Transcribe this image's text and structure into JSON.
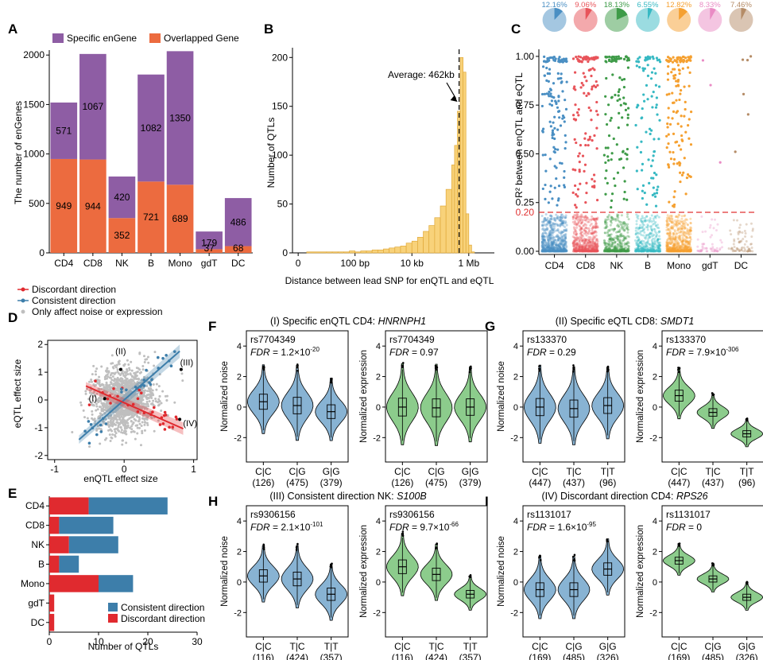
{
  "colors": {
    "purple": "#8e5da4",
    "orange": "#ec6b3f",
    "hist": "#f8d27a",
    "histEdge": "#e0a93a",
    "blue": "#3d7eaa",
    "red": "#e02a2f",
    "grey": "#bfbfbf",
    "violinBlue": "#88b3d3",
    "violinGreen": "#8ccc8c",
    "refline": "#e03030",
    "cells": [
      "#4a8fc3",
      "#e8545a",
      "#3e9b48",
      "#37b9c3",
      "#f5a030",
      "#e98bc4",
      "#b58c67"
    ]
  },
  "panels": {
    "A": "A",
    "B": "B",
    "C": "C",
    "D": "D",
    "E": "E",
    "F": "F",
    "G": "G",
    "H": "H",
    "I": "I"
  },
  "chart_data": [
    {
      "id": "A",
      "type": "bar",
      "stacked": true,
      "categories": [
        "CD4",
        "CD8",
        "NK",
        "B",
        "Mono",
        "gdT",
        "DC"
      ],
      "series": [
        {
          "name": "Overlapped Gene",
          "values": [
            949,
            944,
            352,
            721,
            689,
            37,
            68
          ]
        },
        {
          "name": "Specific enGene",
          "values": [
            571,
            1067,
            420,
            1082,
            1350,
            179,
            486
          ]
        }
      ],
      "ylabel": "The number of enGenes",
      "ylim": [
        0,
        2050
      ],
      "yticks": [
        0,
        500,
        1000,
        1500,
        2000
      ]
    },
    {
      "id": "B",
      "type": "bar",
      "title": "Average: 462kb",
      "xlabel": "Distance between lead SNP for enQTL and eQTL",
      "ylabel": "Number of QTLs",
      "xticks": [
        "0",
        "100 bp",
        "10 kb",
        "1 Mb"
      ],
      "yticks": [
        0,
        50,
        100,
        150,
        200
      ],
      "ylim": [
        0,
        210
      ],
      "bins_log10": [
        0.3,
        1.0,
        1.2,
        1.4,
        1.6,
        1.8,
        2.0,
        2.2,
        2.4,
        2.6,
        2.8,
        3.0,
        3.2,
        3.4,
        3.6,
        3.8,
        4.0,
        4.2,
        4.4,
        4.6,
        4.8,
        5.0,
        5.2,
        5.4,
        5.5,
        5.6,
        5.7,
        5.8,
        5.9,
        6.0,
        6.1
      ],
      "counts": [
        1,
        1,
        1,
        1,
        1,
        2,
        1,
        2,
        2,
        3,
        3,
        4,
        5,
        6,
        7,
        10,
        12,
        16,
        22,
        28,
        36,
        48,
        65,
        90,
        110,
        145,
        200,
        185,
        40,
        8,
        1
      ],
      "average_log10": 5.66
    },
    {
      "id": "C",
      "type": "scatter",
      "ylabel": "R² between enQTL and eQTL",
      "categories": [
        "CD4",
        "CD8",
        "NK",
        "B",
        "Mono",
        "gdT",
        "DC"
      ],
      "pie_percent": [
        "12.16%",
        "9.06%",
        "18.13%",
        "6.55%",
        "12.82%",
        "8.33%",
        "7.46%"
      ],
      "pie_values": [
        12.16,
        9.06,
        18.13,
        6.55,
        12.82,
        8.33,
        7.46
      ],
      "yticks": [
        "0.00",
        "0.25",
        "0.50",
        "0.75",
        "1.00"
      ],
      "ylim": [
        0,
        1.02
      ],
      "threshold": 0.2,
      "threshold_label": "0.20",
      "high_counts": [
        140,
        120,
        100,
        90,
        140,
        3,
        6
      ],
      "low_counts": [
        700,
        560,
        420,
        380,
        620,
        55,
        70
      ]
    },
    {
      "id": "D",
      "type": "scatter",
      "xlabel": "enQTL effect size",
      "ylabel": "eQTL effect size",
      "xticks": [
        "-1",
        "0",
        "1"
      ],
      "yticks": [
        "-2",
        "-1",
        "0",
        "1",
        "2"
      ],
      "xlim": [
        -1.1,
        1.05
      ],
      "ylim": [
        -2.15,
        2.15
      ],
      "legend": [
        "Discordant direction",
        "Consistent direction",
        "Only affect noise or expression"
      ],
      "annotations": [
        "(II)",
        "(III)",
        "(I)",
        "(IV)"
      ],
      "fit_consistent": {
        "slope": 2.2,
        "intercept": 0.0
      },
      "fit_discordant": {
        "slope": -1.1,
        "intercept": -0.1
      }
    },
    {
      "id": "E",
      "type": "bar",
      "stacked": true,
      "horizontal": true,
      "categories": [
        "CD4",
        "CD8",
        "NK",
        "B",
        "Mono",
        "gdT",
        "DC"
      ],
      "series": [
        {
          "name": "Discordant direction",
          "values": [
            8,
            2,
            4,
            2,
            10,
            1,
            1
          ]
        },
        {
          "name": "Consistent direction",
          "values": [
            16,
            11,
            10,
            4,
            7,
            0,
            0
          ]
        }
      ],
      "xlabel": "Number of QTLs",
      "xticks": [
        0,
        10,
        20,
        30
      ],
      "xlim": [
        0,
        30
      ]
    },
    {
      "id": "F",
      "type": "violin",
      "title": "(I) Specific enQTL CD4: ",
      "gene": "HNRNPH1",
      "groups": [
        "C|C",
        "C|G",
        "G|G"
      ],
      "counts": [
        "(126)",
        "(475)",
        "(379)"
      ],
      "left": {
        "snp": "rs7704349",
        "fdr_text": " = 1.2×10",
        "fdr_exp": "-20",
        "ylabel": "Normalized noise",
        "medians": [
          0.35,
          0.1,
          -0.3
        ],
        "spread": [
          1.1,
          1.2,
          1.0
        ]
      },
      "right": {
        "snp": "rs7704349",
        "fdr_text": " = 0.97",
        "fdr_exp": "",
        "ylabel": "Normalized expression",
        "medians": [
          0.0,
          -0.05,
          0.0
        ],
        "spread": [
          1.3,
          1.3,
          1.2
        ]
      }
    },
    {
      "id": "G",
      "type": "violin",
      "title": "(II) Specific eQTL CD8: ",
      "gene": "SMDT1",
      "groups": [
        "C|C",
        "T|C",
        "T|T"
      ],
      "counts": [
        "(447)",
        "(437)",
        "(96)"
      ],
      "left": {
        "snp": "rs133370",
        "fdr_text": " = 0.29",
        "fdr_exp": "",
        "ylabel": "Normalized noise",
        "medians": [
          0.0,
          -0.1,
          0.1
        ],
        "spread": [
          1.25,
          1.25,
          1.15
        ]
      },
      "right": {
        "snp": "rs133370",
        "fdr_text": " = 7.9×10",
        "fdr_exp": "-306",
        "ylabel": "Normalized expression",
        "medians": [
          0.75,
          -0.35,
          -1.75
        ],
        "spread": [
          0.8,
          0.55,
          0.45
        ]
      }
    },
    {
      "id": "H",
      "type": "violin",
      "title": "(III) Consistent direction NK: ",
      "gene": "S100B",
      "groups": [
        "C|C",
        "T|C",
        "T|T"
      ],
      "counts": [
        "(116)",
        "(424)",
        "(357)"
      ],
      "left": {
        "snp": "rs9306156",
        "fdr_text": " = 2.1×10",
        "fdr_exp": "-101",
        "ylabel": "Normalized noise",
        "medians": [
          0.4,
          0.2,
          -0.8
        ],
        "spread": [
          0.9,
          1.0,
          0.9
        ]
      },
      "right": {
        "snp": "rs9306156",
        "fdr_text": " = 9.7×10",
        "fdr_exp": "-66",
        "ylabel": "Normalized expression",
        "medians": [
          1.0,
          0.5,
          -0.8
        ],
        "spread": [
          1.0,
          0.9,
          0.55
        ]
      }
    },
    {
      "id": "I",
      "type": "violin",
      "title": "(IV) Discordant direction CD4: ",
      "gene": "RPS26",
      "groups": [
        "C|C",
        "C|G",
        "G|G"
      ],
      "counts": [
        "(169)",
        "(485)",
        "(326)"
      ],
      "left": {
        "snp": "rs1131017",
        "fdr_text": " = 1.6×10",
        "fdr_exp": "-95",
        "ylabel": "Normalized noise",
        "medians": [
          -0.5,
          -0.5,
          0.85
        ],
        "spread": [
          1.0,
          1.0,
          0.9
        ]
      },
      "right": {
        "snp": "rs1131017",
        "fdr_text": " = 0",
        "fdr_exp": "",
        "ylabel": "Normalized expression",
        "medians": [
          1.4,
          0.2,
          -1.0
        ],
        "spread": [
          0.5,
          0.45,
          0.45
        ]
      }
    }
  ]
}
